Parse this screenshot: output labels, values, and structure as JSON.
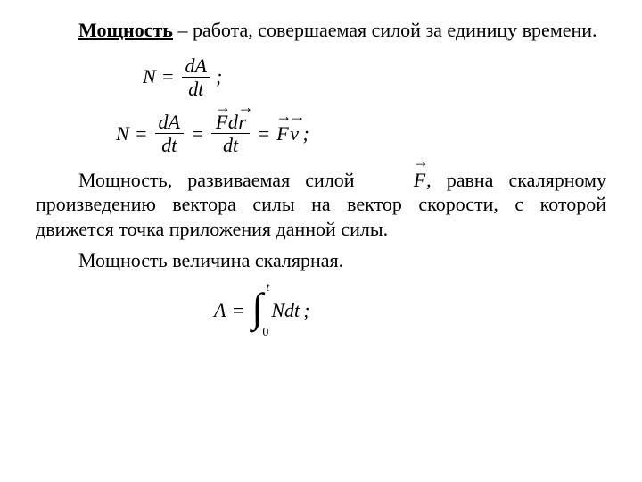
{
  "typography": {
    "font_family": "Times New Roman",
    "base_font_size_pt": 16,
    "formula_font_style": "italic",
    "text_color": "#000000",
    "background_color": "#ffffff"
  },
  "para1": {
    "term": "Мощность",
    "rest": " – работа, совершаемая силой за единицу времени."
  },
  "formula1": {
    "lhs": "N",
    "numerator": "dA",
    "denominator": "dt",
    "tail": ";"
  },
  "formula2": {
    "lhs": "N",
    "frac1_num": "dA",
    "frac1_den": "dt",
    "frac2_num_F": "F",
    "frac2_num_d": "d",
    "frac2_num_r": "r",
    "frac2_den": "dt",
    "rhs_F": "F",
    "rhs_v": "v",
    "tail": ";"
  },
  "para2_pre": "Мощность, развиваемая силой ",
  "para2_F": "F",
  "para2_post": ", равна скалярному произведению вектора силы на вектор скорости, с которой движется точка приложения данной силы.",
  "para3": "Мощность величина  скалярная.",
  "formula3": {
    "lhs": "A",
    "upper": "t",
    "lower": "0",
    "integrand": "Ndt",
    "tail": ";"
  }
}
